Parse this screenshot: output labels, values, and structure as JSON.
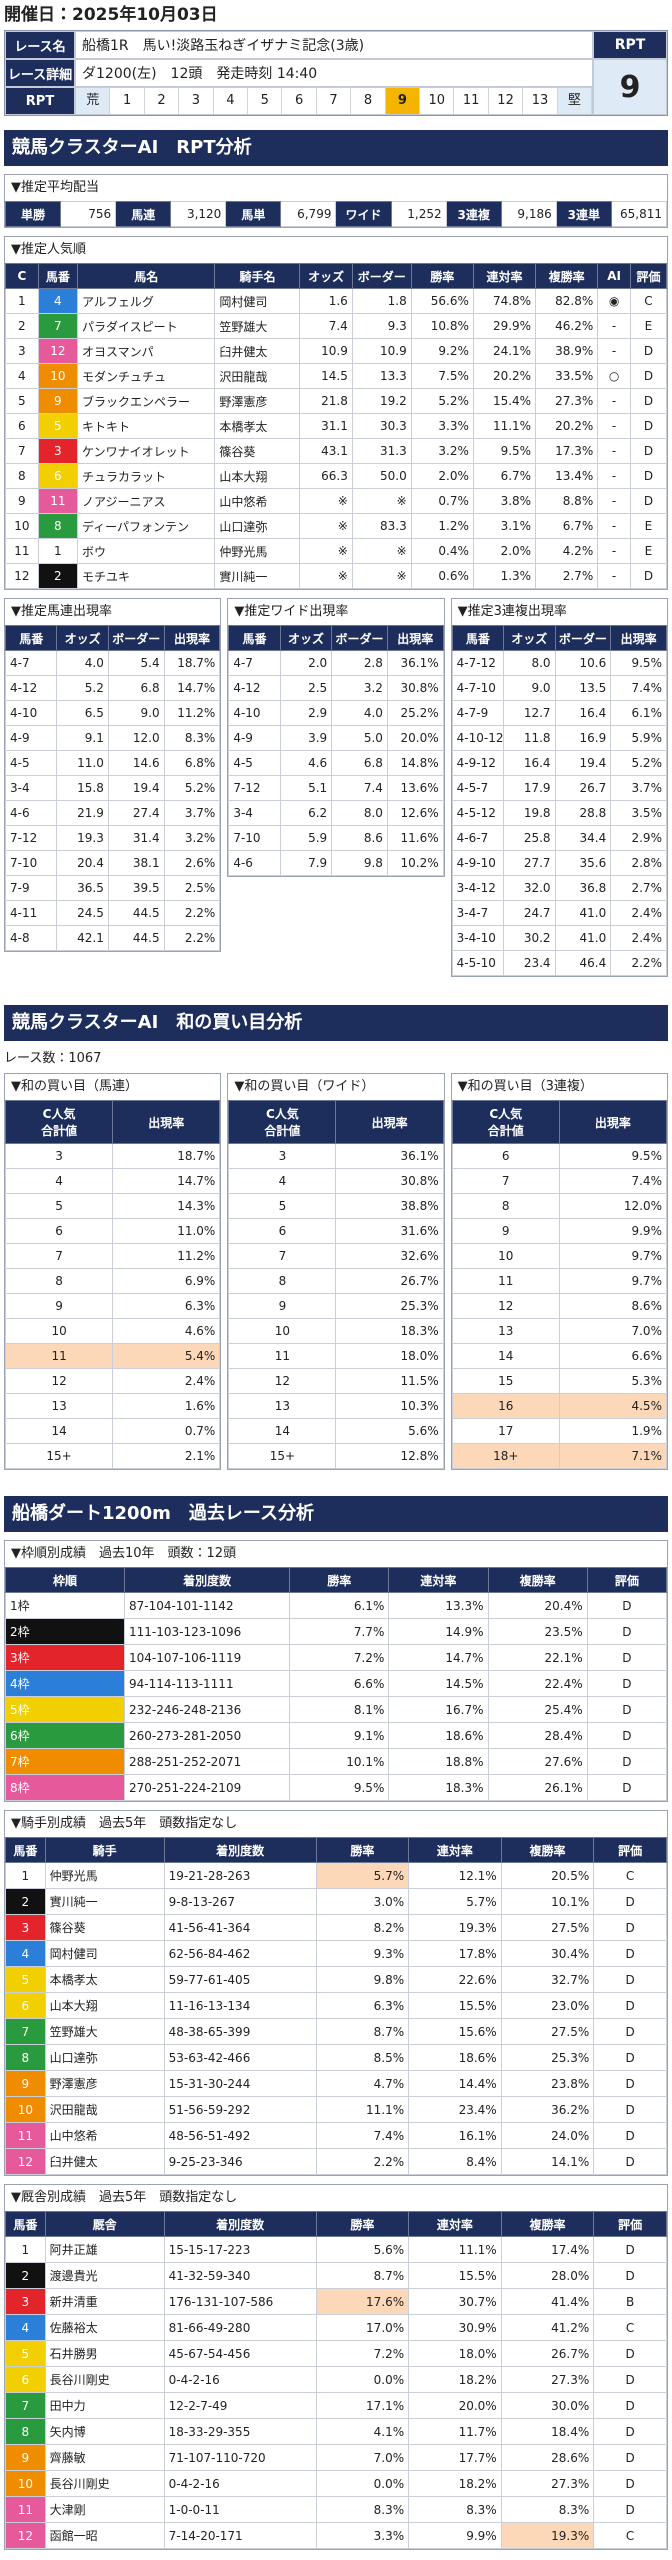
{
  "header": {
    "title": "開催日：2025年10月03日"
  },
  "race_info": {
    "name_label": "レース名",
    "name": "船橋1R　馬い!淡路玉ねぎイザナミ記念(3歳)",
    "detail_label": "レース詳細",
    "detail": "ダ1200(左)　12頭　発走時刻 14:40",
    "rpt_label": "RPT",
    "rpt_title": "RPT",
    "rpt": 9,
    "scale_low": "荒",
    "scale": [
      1,
      2,
      3,
      4,
      5,
      6,
      7,
      8,
      9,
      10,
      11,
      12,
      13
    ],
    "scale_high": "堅"
  },
  "rpt_analysis": {
    "title": "競馬クラスターAI　RPT分析",
    "avg_payout": {
      "title": "▼推定平均配当",
      "items": [
        {
          "label": "単勝",
          "value": "756"
        },
        {
          "label": "馬連",
          "value": "3,120"
        },
        {
          "label": "馬単",
          "value": "6,799"
        },
        {
          "label": "ワイド",
          "value": "1,252"
        },
        {
          "label": "3連複",
          "value": "9,186"
        },
        {
          "label": "3連単",
          "value": "65,811"
        }
      ]
    },
    "popularity": {
      "title": "▼推定人気順",
      "columns": [
        "C",
        "馬番",
        "馬名",
        "騎手名",
        "オッズ",
        "ボーダー",
        "勝率",
        "連対率",
        "複勝率",
        "AI",
        "評価"
      ],
      "rows": [
        [
          "1",
          "4",
          "アルフェルグ",
          "岡村健司",
          "1.6",
          "1.8",
          "56.6%",
          "74.8%",
          "82.8%",
          "◉",
          "C"
        ],
        [
          "2",
          "7",
          "パラダイスピート",
          "笠野雄大",
          "7.4",
          "9.3",
          "10.8%",
          "29.9%",
          "46.2%",
          "-",
          "E"
        ],
        [
          "3",
          "12",
          "オヨスマンパ",
          "臼井健太",
          "10.9",
          "10.9",
          "9.2%",
          "24.1%",
          "38.9%",
          "-",
          "D"
        ],
        [
          "4",
          "10",
          "モダンチュチュ",
          "沢田龍哉",
          "14.5",
          "13.3",
          "7.5%",
          "20.2%",
          "33.5%",
          "○",
          "D"
        ],
        [
          "5",
          "9",
          "ブラックエンペラー",
          "野澤憲彦",
          "21.8",
          "19.2",
          "5.2%",
          "15.4%",
          "27.3%",
          "-",
          "D"
        ],
        [
          "6",
          "5",
          "キトキト",
          "本橋孝太",
          "31.1",
          "30.3",
          "3.3%",
          "11.1%",
          "20.2%",
          "-",
          "D"
        ],
        [
          "7",
          "3",
          "ケンワナイオレット",
          "篠谷葵",
          "43.1",
          "31.3",
          "3.2%",
          "9.5%",
          "17.3%",
          "-",
          "D"
        ],
        [
          "8",
          "6",
          "チュラカラット",
          "山本大翔",
          "66.3",
          "50.0",
          "2.0%",
          "6.7%",
          "13.4%",
          "-",
          "D"
        ],
        [
          "9",
          "11",
          "ノアジーニアス",
          "山中悠希",
          "※",
          "※",
          "0.7%",
          "3.8%",
          "8.8%",
          "-",
          "D"
        ],
        [
          "10",
          "8",
          "ディーパフォンテン",
          "山口達弥",
          "※",
          "83.3",
          "1.2%",
          "3.1%",
          "6.7%",
          "-",
          "E"
        ],
        [
          "11",
          "1",
          "ボウ",
          "仲野光馬",
          "※",
          "※",
          "0.4%",
          "2.0%",
          "4.2%",
          "-",
          "E"
        ],
        [
          "12",
          "2",
          "モチユキ",
          "實川純一",
          "※",
          "※",
          "0.6%",
          "1.3%",
          "2.7%",
          "-",
          "D"
        ]
      ]
    },
    "quinella": {
      "title": "▼推定馬連出現率",
      "columns": [
        "馬番",
        "オッズ",
        "ボーダー",
        "出現率"
      ],
      "rows": [
        [
          "4-7",
          "4.0",
          "5.4",
          "18.7%"
        ],
        [
          "4-12",
          "5.2",
          "6.8",
          "14.7%"
        ],
        [
          "4-10",
          "6.5",
          "9.0",
          "11.2%"
        ],
        [
          "4-9",
          "9.1",
          "12.0",
          "8.3%"
        ],
        [
          "4-5",
          "11.0",
          "14.6",
          "6.8%"
        ],
        [
          "3-4",
          "15.8",
          "19.4",
          "5.2%"
        ],
        [
          "4-6",
          "21.9",
          "27.4",
          "3.7%"
        ],
        [
          "7-12",
          "19.3",
          "31.4",
          "3.2%"
        ],
        [
          "7-10",
          "20.4",
          "38.1",
          "2.6%"
        ],
        [
          "7-9",
          "36.5",
          "39.5",
          "2.5%"
        ],
        [
          "4-11",
          "24.5",
          "44.5",
          "2.2%"
        ],
        [
          "4-8",
          "42.1",
          "44.5",
          "2.2%"
        ]
      ]
    },
    "wide": {
      "title": "▼推定ワイド出現率",
      "columns": [
        "馬番",
        "オッズ",
        "ボーダー",
        "出現率"
      ],
      "rows": [
        [
          "4-7",
          "2.0",
          "2.8",
          "36.1%"
        ],
        [
          "4-12",
          "2.5",
          "3.2",
          "30.8%"
        ],
        [
          "4-10",
          "2.9",
          "4.0",
          "25.2%"
        ],
        [
          "4-9",
          "3.9",
          "5.0",
          "20.0%"
        ],
        [
          "4-5",
          "4.6",
          "6.8",
          "14.8%"
        ],
        [
          "7-12",
          "5.1",
          "7.4",
          "13.6%"
        ],
        [
          "3-4",
          "6.2",
          "8.0",
          "12.6%"
        ],
        [
          "7-10",
          "5.9",
          "8.6",
          "11.6%"
        ],
        [
          "4-6",
          "7.9",
          "9.8",
          "10.2%"
        ]
      ]
    },
    "trio": {
      "title": "▼推定3連複出現率",
      "columns": [
        "馬番",
        "オッズ",
        "ボーダー",
        "出現率"
      ],
      "rows": [
        [
          "4-7-12",
          "8.0",
          "10.6",
          "9.5%"
        ],
        [
          "4-7-10",
          "9.0",
          "13.5",
          "7.4%"
        ],
        [
          "4-7-9",
          "12.7",
          "16.4",
          "6.1%"
        ],
        [
          "4-10-12",
          "11.8",
          "16.9",
          "5.9%"
        ],
        [
          "4-9-12",
          "16.4",
          "19.4",
          "5.2%"
        ],
        [
          "4-5-7",
          "17.9",
          "26.7",
          "3.7%"
        ],
        [
          "4-5-12",
          "19.8",
          "28.8",
          "3.5%"
        ],
        [
          "4-6-7",
          "25.8",
          "34.4",
          "2.9%"
        ],
        [
          "4-9-10",
          "27.7",
          "35.6",
          "2.8%"
        ],
        [
          "3-4-12",
          "32.0",
          "36.8",
          "2.7%"
        ],
        [
          "3-4-7",
          "24.7",
          "41.0",
          "2.4%"
        ],
        [
          "3-4-10",
          "30.2",
          "41.0",
          "2.4%"
        ],
        [
          "4-5-10",
          "23.4",
          "46.4",
          "2.2%"
        ]
      ]
    }
  },
  "sum_analysis": {
    "title": "競馬クラスターAI　和の買い目分析",
    "race_count": "レース数：1067",
    "tables": [
      {
        "title": "▼和の買い目（馬連）",
        "columns": [
          [
            "C人気",
            "合計値"
          ],
          "出現率"
        ],
        "highlight_rows": [
          8
        ],
        "rows": [
          [
            "3",
            "18.7%"
          ],
          [
            "4",
            "14.7%"
          ],
          [
            "5",
            "14.3%"
          ],
          [
            "6",
            "11.0%"
          ],
          [
            "7",
            "11.2%"
          ],
          [
            "8",
            "6.9%"
          ],
          [
            "9",
            "6.3%"
          ],
          [
            "10",
            "4.6%"
          ],
          [
            "11",
            "5.4%"
          ],
          [
            "12",
            "2.4%"
          ],
          [
            "13",
            "1.6%"
          ],
          [
            "14",
            "0.7%"
          ],
          [
            "15+",
            "2.1%"
          ]
        ]
      },
      {
        "title": "▼和の買い目（ワイド）",
        "columns": [
          [
            "C人気",
            "合計値"
          ],
          "出現率"
        ],
        "highlight_rows": [],
        "rows": [
          [
            "3",
            "36.1%"
          ],
          [
            "4",
            "30.8%"
          ],
          [
            "5",
            "38.8%"
          ],
          [
            "6",
            "31.6%"
          ],
          [
            "7",
            "32.6%"
          ],
          [
            "8",
            "26.7%"
          ],
          [
            "9",
            "25.3%"
          ],
          [
            "10",
            "18.3%"
          ],
          [
            "11",
            "18.0%"
          ],
          [
            "12",
            "11.5%"
          ],
          [
            "13",
            "10.3%"
          ],
          [
            "14",
            "5.6%"
          ],
          [
            "15+",
            "12.8%"
          ]
        ]
      },
      {
        "title": "▼和の買い目（3連複）",
        "columns": [
          [
            "C人気",
            "合計値"
          ],
          "出現率"
        ],
        "highlight_rows": [
          10,
          12
        ],
        "rows": [
          [
            "6",
            "9.5%"
          ],
          [
            "7",
            "7.4%"
          ],
          [
            "8",
            "12.0%"
          ],
          [
            "9",
            "9.9%"
          ],
          [
            "10",
            "9.7%"
          ],
          [
            "11",
            "9.7%"
          ],
          [
            "12",
            "8.6%"
          ],
          [
            "13",
            "7.0%"
          ],
          [
            "14",
            "6.6%"
          ],
          [
            "15",
            "5.3%"
          ],
          [
            "16",
            "4.5%"
          ],
          [
            "17",
            "1.9%"
          ],
          [
            "18+",
            "7.1%"
          ]
        ]
      }
    ]
  },
  "past_analysis": {
    "title": "船橋ダート1200m　過去レース分析",
    "frame": {
      "title": "▼枠順別成績　過去10年　頭数：12頭",
      "columns": [
        "枠順",
        "着別度数",
        "勝率",
        "連対率",
        "複勝率",
        "評価"
      ],
      "rows": [
        [
          "1枠",
          "87-104-101-1142",
          "6.1%",
          "13.3%",
          "20.4%",
          "D"
        ],
        [
          "2枠",
          "111-103-123-1096",
          "7.7%",
          "14.9%",
          "23.5%",
          "D"
        ],
        [
          "3枠",
          "104-107-106-1119",
          "7.2%",
          "14.7%",
          "22.1%",
          "D"
        ],
        [
          "4枠",
          "94-114-113-1111",
          "6.6%",
          "14.5%",
          "22.4%",
          "D"
        ],
        [
          "5枠",
          "232-246-248-2136",
          "8.1%",
          "16.7%",
          "25.4%",
          "D"
        ],
        [
          "6枠",
          "260-273-281-2050",
          "9.1%",
          "18.6%",
          "28.4%",
          "D"
        ],
        [
          "7枠",
          "288-251-252-2071",
          "10.1%",
          "18.8%",
          "27.6%",
          "D"
        ],
        [
          "8枠",
          "270-251-224-2109",
          "9.5%",
          "18.3%",
          "26.1%",
          "D"
        ]
      ]
    },
    "jockey": {
      "title": "▼騎手別成績　過去5年　頭数指定なし",
      "columns": [
        "馬番",
        "騎手",
        "着別度数",
        "勝率",
        "連対率",
        "複勝率",
        "評価"
      ],
      "highlight_cells": [
        [
          0,
          3
        ]
      ],
      "rows": [
        [
          "1",
          "仲野光馬",
          "19-21-28-263",
          "5.7%",
          "12.1%",
          "20.5%",
          "C"
        ],
        [
          "2",
          "實川純一",
          "9-8-13-267",
          "3.0%",
          "5.7%",
          "10.1%",
          "D"
        ],
        [
          "3",
          "篠谷葵",
          "41-56-41-364",
          "8.2%",
          "19.3%",
          "27.5%",
          "D"
        ],
        [
          "4",
          "岡村健司",
          "62-56-84-462",
          "9.3%",
          "17.8%",
          "30.4%",
          "D"
        ],
        [
          "5",
          "本橋孝太",
          "59-77-61-405",
          "9.8%",
          "22.6%",
          "32.7%",
          "D"
        ],
        [
          "6",
          "山本大翔",
          "11-16-13-134",
          "6.3%",
          "15.5%",
          "23.0%",
          "D"
        ],
        [
          "7",
          "笠野雄大",
          "48-38-65-399",
          "8.7%",
          "15.6%",
          "27.5%",
          "D"
        ],
        [
          "8",
          "山口達弥",
          "53-63-42-466",
          "8.5%",
          "18.6%",
          "25.3%",
          "D"
        ],
        [
          "9",
          "野澤憲彦",
          "15-31-30-244",
          "4.7%",
          "14.4%",
          "23.8%",
          "D"
        ],
        [
          "10",
          "沢田龍哉",
          "51-56-59-292",
          "11.1%",
          "23.4%",
          "36.2%",
          "D"
        ],
        [
          "11",
          "山中悠希",
          "48-56-51-492",
          "7.4%",
          "16.1%",
          "24.0%",
          "D"
        ],
        [
          "12",
          "臼井健太",
          "9-25-23-346",
          "2.2%",
          "8.4%",
          "14.1%",
          "D"
        ]
      ]
    },
    "stable": {
      "title": "▼厩舎別成績　過去5年　頭数指定なし",
      "columns": [
        "馬番",
        "厩舎",
        "着別度数",
        "勝率",
        "連対率",
        "複勝率",
        "評価"
      ],
      "highlight_cells": [
        [
          2,
          3
        ],
        [
          11,
          5
        ]
      ],
      "rows": [
        [
          "1",
          "阿井正雄",
          "15-15-17-223",
          "5.6%",
          "11.1%",
          "17.4%",
          "D"
        ],
        [
          "2",
          "渡邊貴光",
          "41-32-59-340",
          "8.7%",
          "15.5%",
          "28.0%",
          "D"
        ],
        [
          "3",
          "新井清重",
          "176-131-107-586",
          "17.6%",
          "30.7%",
          "41.4%",
          "B"
        ],
        [
          "4",
          "佐藤裕太",
          "81-66-49-280",
          "17.0%",
          "30.9%",
          "41.2%",
          "C"
        ],
        [
          "5",
          "石井勝男",
          "45-67-54-456",
          "7.2%",
          "18.0%",
          "26.7%",
          "D"
        ],
        [
          "6",
          "長谷川剛史",
          "0-4-2-16",
          "0.0%",
          "18.2%",
          "27.3%",
          "D"
        ],
        [
          "7",
          "田中力",
          "12-2-7-49",
          "17.1%",
          "20.0%",
          "30.0%",
          "D"
        ],
        [
          "8",
          "矢内博",
          "18-33-29-355",
          "4.1%",
          "11.7%",
          "18.4%",
          "D"
        ],
        [
          "9",
          "齊藤敏",
          "71-107-110-720",
          "7.0%",
          "17.7%",
          "28.6%",
          "D"
        ],
        [
          "10",
          "長谷川剛史",
          "0-4-2-16",
          "0.0%",
          "18.2%",
          "27.3%",
          "D"
        ],
        [
          "11",
          "大津剛",
          "1-0-0-11",
          "8.3%",
          "8.3%",
          "8.3%",
          "D"
        ],
        [
          "12",
          "函館一昭",
          "7-14-20-171",
          "3.3%",
          "9.9%",
          "19.3%",
          "C"
        ]
      ]
    }
  }
}
